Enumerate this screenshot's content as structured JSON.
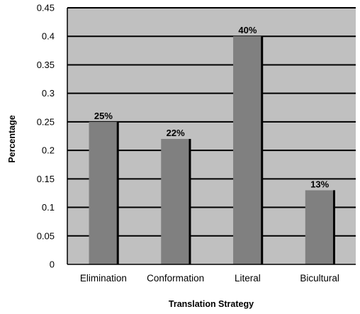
{
  "colors": {
    "plot_background": "#c0c0c0",
    "bar_fill": "#808080",
    "bar_edge": "#000000",
    "grid": "#000000"
  },
  "chart_data": {
    "type": "bar",
    "categories": [
      "Elimination",
      "Conformation",
      "Literal",
      "Bicultural"
    ],
    "values": [
      0.25,
      0.22,
      0.4,
      0.13
    ],
    "data_labels": [
      "25%",
      "22%",
      "40%",
      "13%"
    ],
    "xlabel": "Translation Strategy",
    "ylabel": "Percentage",
    "ylim": [
      0,
      0.45
    ],
    "yticks": [
      0,
      0.05,
      0.1,
      0.15,
      0.2,
      0.25,
      0.3,
      0.35,
      0.4,
      0.45
    ],
    "ytick_labels": [
      "0",
      "0.05",
      "0.1",
      "0.15",
      "0.2",
      "0.25",
      "0.3",
      "0.35",
      "0.4",
      "0.45"
    ],
    "grid": true,
    "legend": false
  }
}
